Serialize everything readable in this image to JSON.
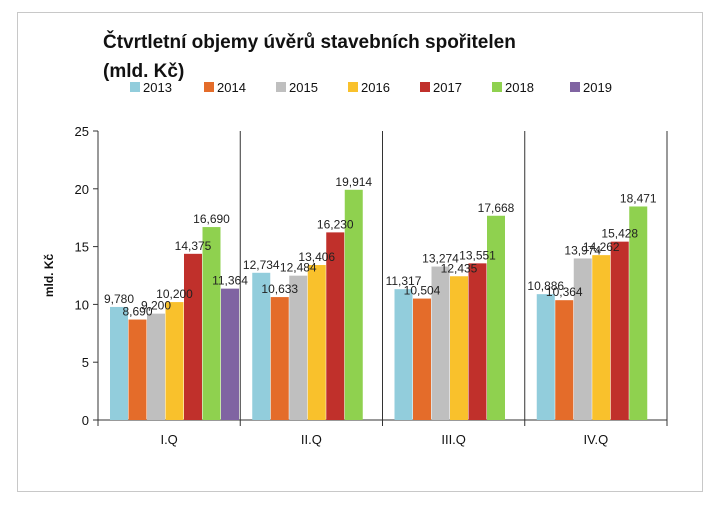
{
  "chart_data": {
    "type": "bar",
    "title_lines": [
      "Čtvrtletní objemy úvěrů stavebních spořitelen",
      "(mld. Kč)"
    ],
    "xlabel": "",
    "ylabel": "mld. Kč",
    "ylim": [
      0,
      25
    ],
    "yticks": [
      "0",
      "5",
      "10",
      "15",
      "20",
      "25"
    ],
    "grid": false,
    "legend_position": "top",
    "categories": [
      "I.Q",
      "II.Q",
      "III.Q",
      "IV.Q"
    ],
    "series": [
      {
        "name": "2013",
        "color": "#92cddc",
        "values": [
          9.78,
          12.734,
          11.317,
          10.886
        ],
        "labels": [
          "9,780",
          "12,734",
          "11,317",
          "10,886"
        ]
      },
      {
        "name": "2014",
        "color": "#e46c2a",
        "values": [
          8.69,
          10.633,
          10.504,
          10.364
        ],
        "labels": [
          "8,690",
          "10,633",
          "10,504",
          "10,364"
        ]
      },
      {
        "name": "2015",
        "color": "#bfbfbf",
        "values": [
          9.2,
          12.484,
          13.274,
          13.974
        ],
        "labels": [
          "9,200",
          "12,484",
          "13,274",
          "13,974"
        ]
      },
      {
        "name": "2016",
        "color": "#f9c12c",
        "values": [
          10.2,
          13.406,
          12.435,
          14.262
        ],
        "labels": [
          "10,200",
          "13,406",
          "12,435",
          "14,262"
        ]
      },
      {
        "name": "2017",
        "color": "#c0302b",
        "values": [
          14.375,
          16.23,
          13.551,
          15.428
        ],
        "labels": [
          "14,375",
          "16,230",
          "13,551",
          "15,428"
        ]
      },
      {
        "name": "2018",
        "color": "#8fd14f",
        "values": [
          16.69,
          19.914,
          17.668,
          18.471
        ],
        "labels": [
          "16,690",
          "19,914",
          "17,668",
          "18,471"
        ]
      },
      {
        "name": "2019",
        "color": "#8064a2",
        "values": [
          11.364,
          null,
          null,
          null
        ],
        "labels": [
          "11,364",
          null,
          null,
          null
        ]
      }
    ]
  }
}
